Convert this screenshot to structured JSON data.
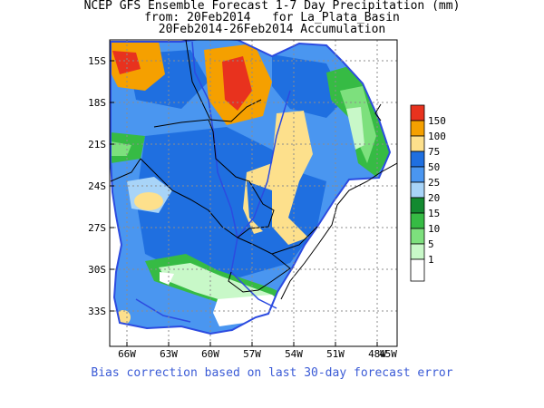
{
  "header": {
    "line1": "NCEP GFS Ensemble Forecast 1-7 Day Precipitation (mm)",
    "line2": "from: 20Feb2014   for La_Plata_Basin",
    "line3": "20Feb2014-26Feb2014 Accumulation"
  },
  "footer": "Bias correction based on last 30-day forecast error",
  "axes": {
    "lat_labels": [
      "15S",
      "18S",
      "21S",
      "24S",
      "27S",
      "30S",
      "33S"
    ],
    "lon_labels": [
      "66W",
      "63W",
      "60W",
      "57W",
      "54W",
      "51W",
      "48W",
      "45W"
    ]
  },
  "legend": {
    "labels": [
      "150",
      "100",
      "75",
      "50",
      "25",
      "20",
      "15",
      "10",
      "5",
      "1"
    ],
    "colors": [
      "#e8321e",
      "#f5a000",
      "#fde08c",
      "#1f6fe0",
      "#4a96f0",
      "#a8d4f8",
      "#138a30",
      "#36bb44",
      "#7de07d",
      "#c8f8c8",
      "#ffffff"
    ]
  },
  "palette": {
    "basin": "#2c4be0",
    "border": "#000000",
    "grid": "#8c8c8c"
  }
}
